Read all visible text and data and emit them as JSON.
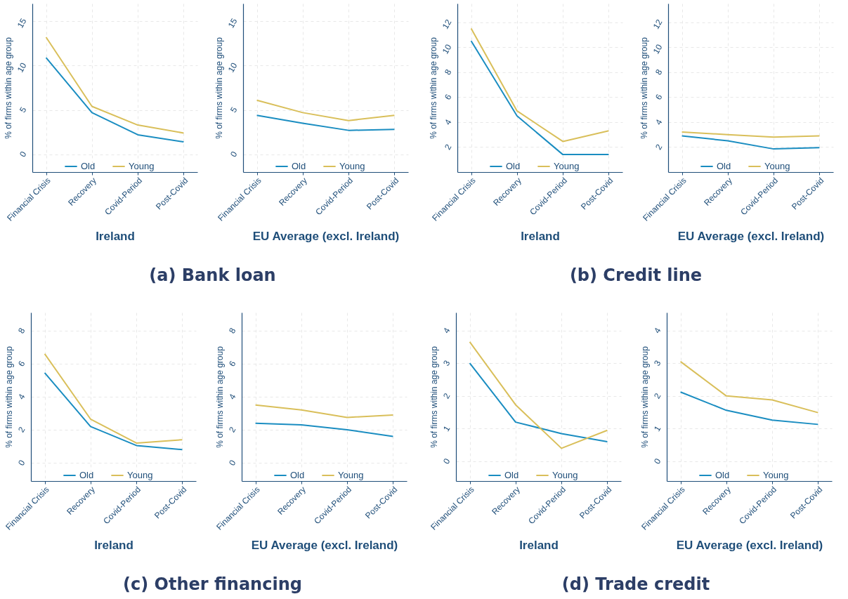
{
  "chart_data": [
    {
      "type": "line",
      "xlabel": "Ireland",
      "ylabel": "% of firms within age group",
      "annotations": [
        "(a) Bank loan"
      ],
      "categories": [
        "Financial Crisis",
        "Recovery",
        "Covid-Period",
        "Post-Covid"
      ],
      "ylim": [
        -2,
        17
      ],
      "yticks": [
        0,
        5,
        10,
        15
      ],
      "grid": true,
      "legend": "bottom",
      "line_style": "solid",
      "series": [
        {
          "name": "Old",
          "color": "#1a8dc1",
          "values": [
            10.9,
            4.7,
            2.2,
            1.4
          ]
        },
        {
          "name": "Young",
          "color": "#d9bf5a",
          "values": [
            13.2,
            5.4,
            3.3,
            2.4
          ]
        }
      ]
    },
    {
      "type": "line",
      "xlabel": "EU Average (excl. Ireland)",
      "ylabel": "% of firms within age group",
      "categories": [
        "Financial Crisis",
        "Recovery",
        "Covid-Period",
        "Post-Covid"
      ],
      "ylim": [
        -2,
        17
      ],
      "yticks": [
        0,
        5,
        10,
        15
      ],
      "grid": true,
      "legend": "bottom",
      "line_style": "solid",
      "series": [
        {
          "name": "Old",
          "color": "#1a8dc1",
          "values": [
            4.4,
            3.5,
            2.7,
            2.8
          ]
        },
        {
          "name": "Young",
          "color": "#d9bf5a",
          "values": [
            6.1,
            4.7,
            3.8,
            4.4
          ]
        }
      ]
    },
    {
      "type": "line",
      "xlabel": "Ireland",
      "ylabel": "% of firms within age group",
      "annotations": [
        "(b) Credit line"
      ],
      "categories": [
        "Financial Crisis",
        "Recovery",
        "Covid-Period",
        "Post-Covid"
      ],
      "ylim": [
        0,
        13.5
      ],
      "yticks": [
        2,
        4,
        6,
        8,
        10,
        12
      ],
      "grid": true,
      "legend": "bottom",
      "line_style": "solid",
      "series": [
        {
          "name": "Old",
          "color": "#1a8dc1",
          "values": [
            10.5,
            4.5,
            1.4,
            1.4
          ]
        },
        {
          "name": "Young",
          "color": "#d9bf5a",
          "values": [
            11.5,
            4.9,
            2.45,
            3.3
          ]
        }
      ]
    },
    {
      "type": "line",
      "xlabel": "EU Average (excl. Ireland)",
      "ylabel": "% of firms within age group",
      "categories": [
        "Financial Crisis",
        "Recovery",
        "Covid-Period",
        "Post-Covid"
      ],
      "ylim": [
        0,
        13.5
      ],
      "yticks": [
        2,
        4,
        6,
        8,
        10,
        12
      ],
      "grid": true,
      "legend": "bottom",
      "line_style": "solid",
      "series": [
        {
          "name": "Old",
          "color": "#1a8dc1",
          "values": [
            2.9,
            2.5,
            1.85,
            1.95
          ]
        },
        {
          "name": "Young",
          "color": "#d9bf5a",
          "values": [
            3.2,
            3.0,
            2.8,
            2.9
          ]
        }
      ]
    },
    {
      "type": "line",
      "xlabel": "Ireland",
      "ylabel": "% of firms within age group",
      "annotations": [
        "(c) Other financing"
      ],
      "categories": [
        "Financial Crisis",
        "Recovery",
        "Covid-Period",
        "Post-Covid"
      ],
      "ylim": [
        -1.1,
        9.1
      ],
      "yticks": [
        0,
        2,
        4,
        6,
        8
      ],
      "grid": true,
      "legend": "bottom",
      "line_style": "solid",
      "series": [
        {
          "name": "Old",
          "color": "#1a8dc1",
          "values": [
            5.45,
            2.2,
            1.05,
            0.8
          ]
        },
        {
          "name": "Young",
          "color": "#d9bf5a",
          "values": [
            6.6,
            2.65,
            1.2,
            1.4
          ]
        }
      ]
    },
    {
      "type": "line",
      "xlabel": "EU Average (excl. Ireland)",
      "ylabel": "% of firms within age group",
      "categories": [
        "Financial Crisis",
        "Recovery",
        "Covid-Period",
        "Post-Covid"
      ],
      "ylim": [
        -1.1,
        9.1
      ],
      "yticks": [
        0,
        2,
        4,
        6,
        8
      ],
      "grid": true,
      "legend": "bottom",
      "line_style": "solid",
      "series": [
        {
          "name": "Old",
          "color": "#1a8dc1",
          "values": [
            2.4,
            2.3,
            2.0,
            1.6
          ]
        },
        {
          "name": "Young",
          "color": "#d9bf5a",
          "values": [
            3.5,
            3.2,
            2.75,
            2.9
          ]
        }
      ]
    },
    {
      "type": "line",
      "xlabel": "Ireland",
      "ylabel": "% of firms within age group",
      "annotations": [
        "(d) Trade credit"
      ],
      "categories": [
        "Financial Crisis",
        "Recovery",
        "Covid-Period",
        "Post-Covid"
      ],
      "ylim": [
        -0.6,
        4.55
      ],
      "yticks": [
        0,
        1,
        2,
        3,
        4
      ],
      "grid": true,
      "legend": "bottom",
      "line_style": "solid",
      "series": [
        {
          "name": "Old",
          "color": "#1a8dc1",
          "values": [
            3.0,
            1.2,
            0.85,
            0.6
          ]
        },
        {
          "name": "Young",
          "color": "#d9bf5a",
          "values": [
            3.65,
            1.73,
            0.4,
            0.95
          ]
        }
      ]
    },
    {
      "type": "line",
      "xlabel": "EU Average (excl. Ireland)",
      "ylabel": "% of firms within age group",
      "categories": [
        "Financial Crisis",
        "Recovery",
        "Covid-Period",
        "Post-Covid"
      ],
      "ylim": [
        -0.6,
        4.55
      ],
      "yticks": [
        0,
        1,
        2,
        3,
        4
      ],
      "grid": true,
      "legend": "bottom",
      "line_style": "solid",
      "series": [
        {
          "name": "Old",
          "color": "#1a8dc1",
          "values": [
            2.12,
            1.56,
            1.26,
            1.13
          ]
        },
        {
          "name": "Young",
          "color": "#d9bf5a",
          "values": [
            3.05,
            2.0,
            1.88,
            1.49
          ]
        }
      ]
    }
  ]
}
